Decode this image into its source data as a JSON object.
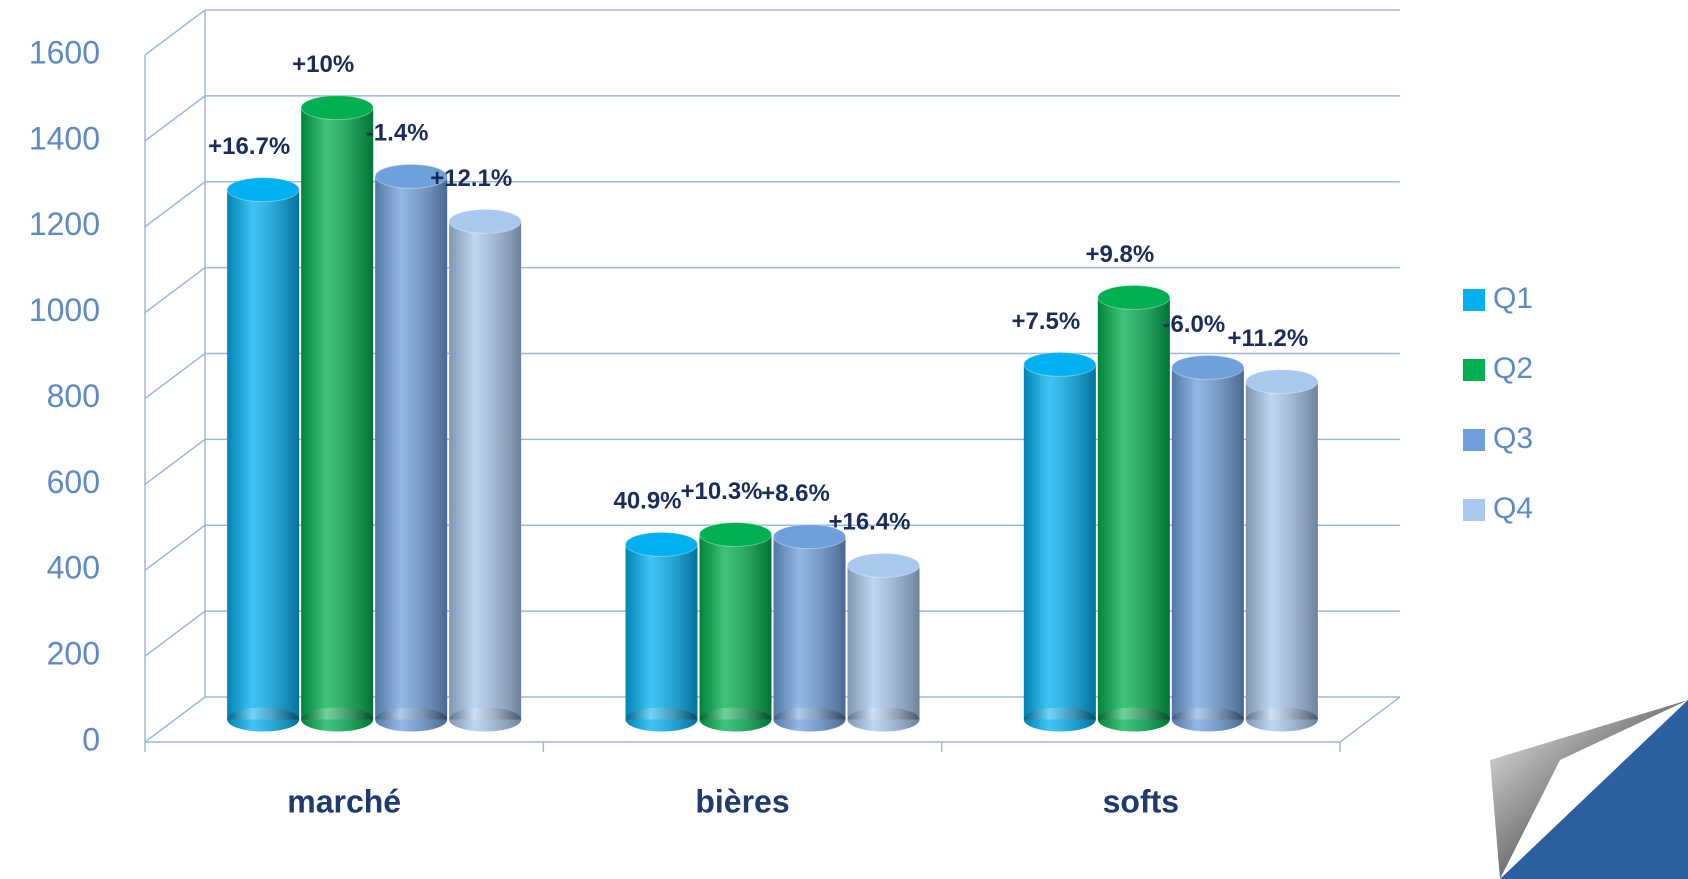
{
  "chart_data": {
    "type": "bar3d",
    "categories": [
      "marché",
      "bières",
      "softs"
    ],
    "series": [
      {
        "name": "Q1",
        "color": "#00b0f0",
        "values": [
          1234,
          408,
          827
        ],
        "value_labels": [
          "+16.7%",
          "40.9%",
          "+7.5%"
        ]
      },
      {
        "name": "Q2",
        "color": "#00b050",
        "values": [
          1425,
          431,
          983
        ],
        "value_labels": [
          "+10%",
          "+10.3%",
          "+9.8%"
        ]
      },
      {
        "name": "Q3",
        "color": "#6fa0dc",
        "values": [
          1265,
          426,
          820
        ],
        "value_labels": [
          "-1.4%",
          "+8.6%",
          "-6.0%"
        ]
      },
      {
        "name": "Q4",
        "color": "#a9c8ee",
        "values": [
          1160,
          359,
          787
        ],
        "value_labels": [
          "+12.1%",
          "+16.4%",
          "+11.2%"
        ]
      }
    ],
    "ylim": [
      0,
      1600
    ],
    "yticks": [
      0,
      200,
      400,
      600,
      800,
      1000,
      1200,
      1400,
      1600
    ],
    "grid": true,
    "legend": "right"
  }
}
